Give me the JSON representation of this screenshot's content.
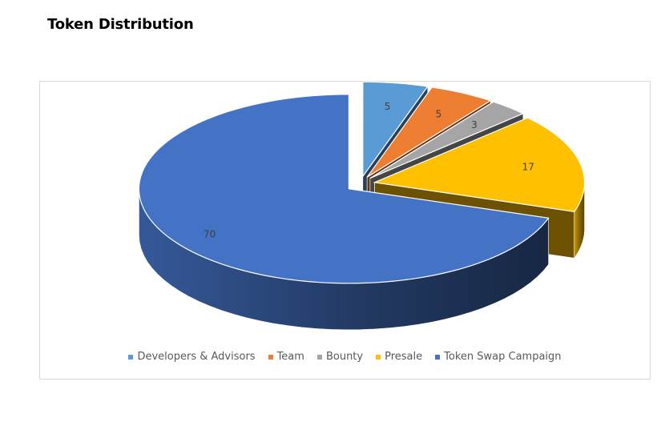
{
  "page": {
    "title": "Token Distribution"
  },
  "chart_data": {
    "type": "pie",
    "title": "",
    "style": "3d-exploded",
    "legend_position": "bottom",
    "categories": [
      "Developers & Advisors",
      "Team",
      "Bounty",
      "Presale",
      "Token Swap Campaign"
    ],
    "values": [
      5,
      5,
      3,
      17,
      70
    ],
    "colors": [
      "#5b9bd5",
      "#ed7d31",
      "#a5a5a5",
      "#ffc000",
      "#4472c4"
    ],
    "data_labels": [
      "5",
      "5",
      "3",
      "17",
      "70"
    ]
  }
}
